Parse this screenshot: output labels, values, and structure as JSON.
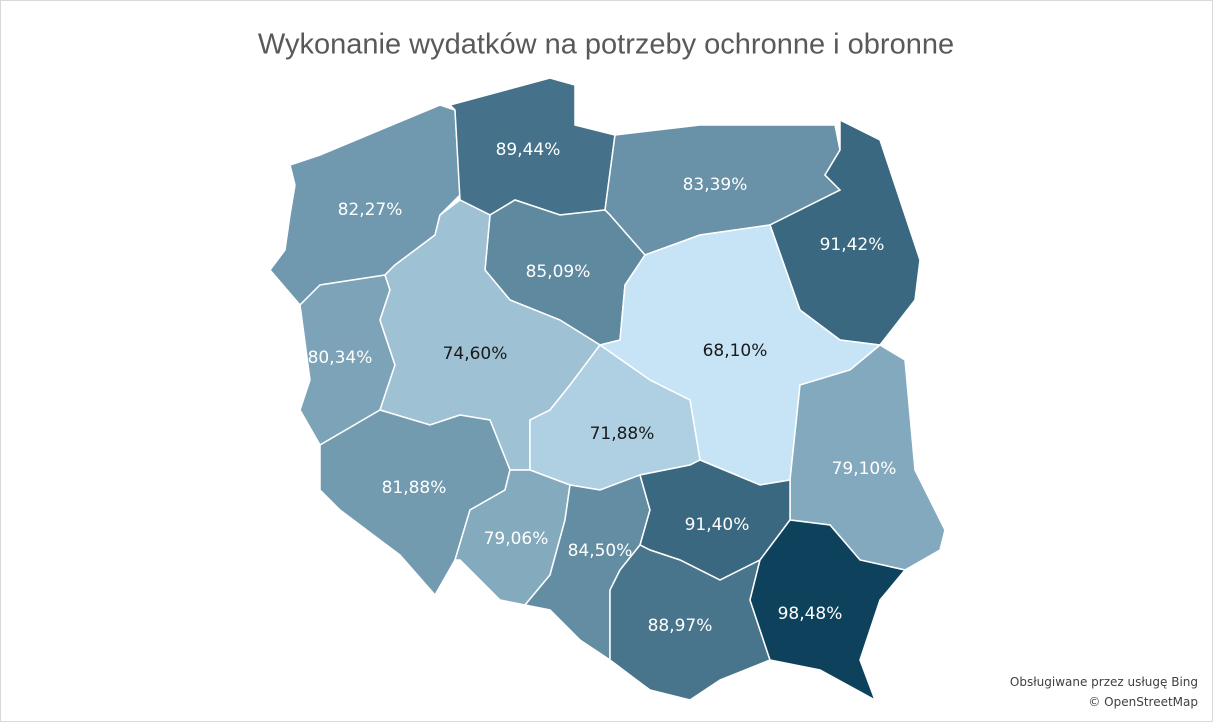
{
  "chart_data": {
    "type": "choropleth",
    "title": "Wykonanie wydatków na potrzeby ochronne i obronne",
    "values": [
      82.27,
      89.44,
      83.39,
      91.42,
      85.09,
      80.34,
      74.6,
      68.1,
      71.88,
      79.1,
      81.88,
      79.06,
      84.5,
      91.4,
      88.97,
      98.48
    ],
    "value_labels": [
      "82,27%",
      "89,44%",
      "83,39%",
      "91,42%",
      "85,09%",
      "80,34%",
      "74,60%",
      "68,10%",
      "71,88%",
      "79,10%",
      "81,88%",
      "79,06%",
      "84,50%",
      "91,40%",
      "88,97%",
      "98,48%"
    ],
    "color_scale": {
      "low": "#c6e4f5",
      "high": "#0e425c"
    },
    "attribution": [
      "Obsługiwane przez usługę Bing",
      "© OpenStreetMap"
    ]
  }
}
